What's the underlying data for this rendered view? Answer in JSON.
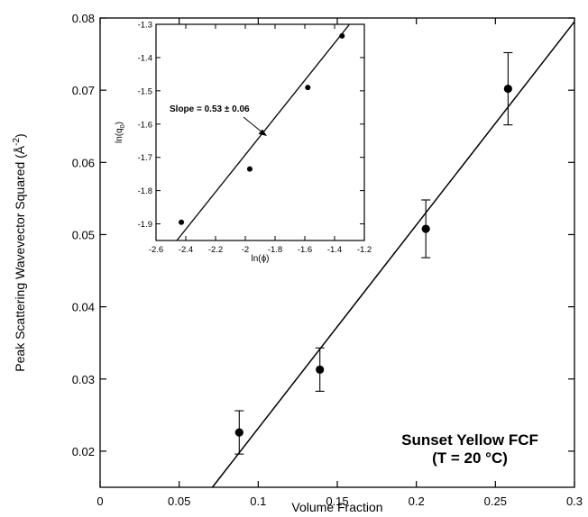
{
  "chart_data": [
    {
      "type": "scatter",
      "xlabel": "Volume Fraction",
      "ylabel": "Peak Scattering Wavevector Squared  (Å",
      "ylabel_superscript": "-2",
      "ylabel_close": ")",
      "xlim": [
        0,
        0.3
      ],
      "ylim": [
        0.015,
        0.08
      ],
      "x_ticks": [
        0,
        0.05,
        0.1,
        0.15,
        0.2,
        0.25,
        0.3
      ],
      "x_tick_labels": [
        "0",
        "0.05",
        "0.1",
        "0.15",
        "0.2",
        "0.25",
        "0.3"
      ],
      "y_ticks": [
        0.02,
        0.03,
        0.04,
        0.05,
        0.06,
        0.07,
        0.08
      ],
      "y_tick_labels": [
        "0.02",
        "0.03",
        "0.04",
        "0.05",
        "0.06",
        "0.07",
        "0.08"
      ],
      "points": [
        {
          "x": 0.088,
          "y": 0.0226,
          "yerr": 0.003
        },
        {
          "x": 0.139,
          "y": 0.0313,
          "yerr": 0.003
        },
        {
          "x": 0.206,
          "y": 0.0508,
          "yerr": 0.004
        },
        {
          "x": 0.258,
          "y": 0.0702,
          "yerr": 0.005
        }
      ],
      "fit_line": {
        "x1": 0.071,
        "y1": 0.015,
        "x2": 0.3,
        "y2": 0.0795
      },
      "annotation_line1": "Sunset Yellow FCF",
      "annotation_line2": "(T = 20 °C)",
      "grid": false
    },
    {
      "type": "scatter",
      "placement": "inset top-left",
      "xlabel": "ln(ϕ)",
      "ylabel_base": "ln(q",
      "ylabel_sub": "0",
      "ylabel_close": ")",
      "xlim": [
        -2.6,
        -1.2
      ],
      "ylim": [
        -1.95,
        -1.3
      ],
      "x_ticks": [
        -2.6,
        -2.4,
        -2.2,
        -2.0,
        -1.8,
        -1.6,
        -1.4,
        -1.2
      ],
      "x_tick_labels": [
        "-2.6",
        "-2.4",
        "-2.2",
        "-2",
        "-1.8",
        "-1.6",
        "-1.4",
        "-1.2"
      ],
      "y_ticks": [
        -1.9,
        -1.8,
        -1.7,
        -1.6,
        -1.5,
        -1.4,
        -1.3
      ],
      "y_tick_labels": [
        "-1.9",
        "-1.8",
        "-1.7",
        "-1.6",
        "-1.5",
        "-1.4",
        "-1.3"
      ],
      "points": [
        {
          "x": -2.43,
          "y": -1.895
        },
        {
          "x": -1.97,
          "y": -1.735
        },
        {
          "x": -1.58,
          "y": -1.49
        },
        {
          "x": -1.35,
          "y": -1.335
        }
      ],
      "fit_line": {
        "x1": -2.46,
        "y1": -1.95,
        "x2": -1.3,
        "y2": -1.3
      },
      "annotation": "Slope = 0.53 ± 0.06",
      "grid": false
    }
  ]
}
